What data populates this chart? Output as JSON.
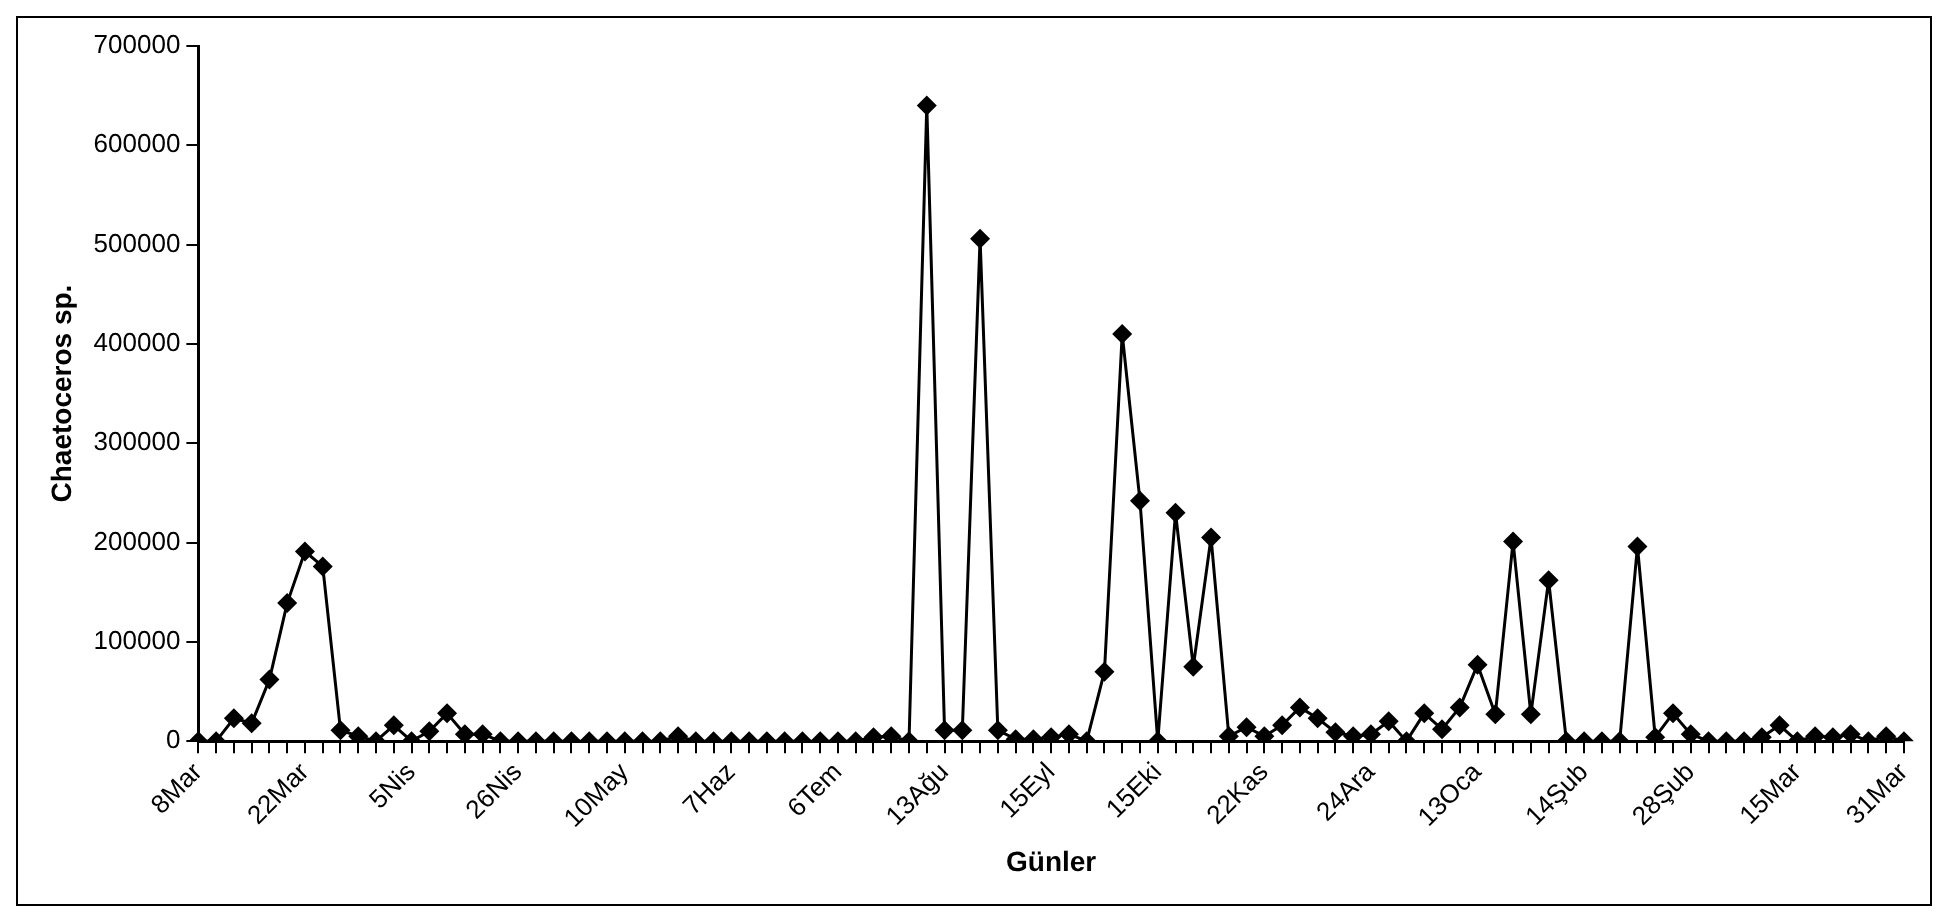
{
  "chart_data": {
    "type": "line",
    "xlabel": "Günler",
    "ylabel": "Chaetoceros sp.",
    "categories": [
      "8Mar",
      null,
      null,
      null,
      null,
      null,
      "22Mar",
      null,
      null,
      null,
      null,
      null,
      "5Nis",
      null,
      null,
      null,
      null,
      null,
      "26Nis",
      null,
      null,
      null,
      null,
      null,
      "10May",
      null,
      null,
      null,
      null,
      null,
      "7Haz",
      null,
      null,
      null,
      null,
      null,
      "6Tem",
      null,
      null,
      null,
      null,
      null,
      "13Ağu",
      null,
      null,
      null,
      null,
      null,
      "15Eyl",
      null,
      null,
      null,
      null,
      null,
      "15Eki",
      null,
      null,
      null,
      null,
      null,
      "22Kas",
      null,
      null,
      null,
      null,
      null,
      "24Ara",
      null,
      null,
      null,
      null,
      null,
      "13Oca",
      null,
      null,
      null,
      null,
      null,
      "14Şub",
      null,
      null,
      null,
      null,
      null,
      "28Şub",
      null,
      null,
      null,
      null,
      null,
      "15Mar",
      null,
      null,
      null,
      null,
      null,
      "31Mar"
    ],
    "series": [
      {
        "color": "#000000",
        "values": [
          0,
          0,
          23000,
          18000,
          62000,
          139000,
          191000,
          176000,
          11000,
          5000,
          0,
          16000,
          0,
          10000,
          28000,
          7000,
          7000,
          0,
          0,
          0,
          0,
          0,
          0,
          0,
          0,
          0,
          0,
          5000,
          0,
          0,
          0,
          0,
          0,
          0,
          0,
          0,
          0,
          0,
          4000,
          5000,
          0,
          640000,
          11000,
          11000,
          506000,
          11000,
          2000,
          2000,
          4000,
          7000,
          0,
          70000,
          410000,
          242000,
          0,
          230000,
          75000,
          205000,
          5000,
          14000,
          5000,
          16000,
          34000,
          23000,
          9000,
          5000,
          7000,
          20000,
          0,
          28000,
          12000,
          34000,
          77000,
          27000,
          201000,
          27000,
          162000,
          0,
          0,
          0,
          0,
          196000,
          4000,
          28000,
          7000,
          0,
          0,
          0,
          4000,
          16000,
          0,
          5000,
          4000,
          7000,
          0,
          5000,
          0
        ]
      }
    ],
    "ylim": [
      0,
      700000
    ],
    "yticks": [
      0,
      100000,
      200000,
      300000,
      400000,
      500000,
      600000,
      700000
    ],
    "grid": false,
    "legend": false,
    "marker": "diamond",
    "line_style": "solid"
  }
}
